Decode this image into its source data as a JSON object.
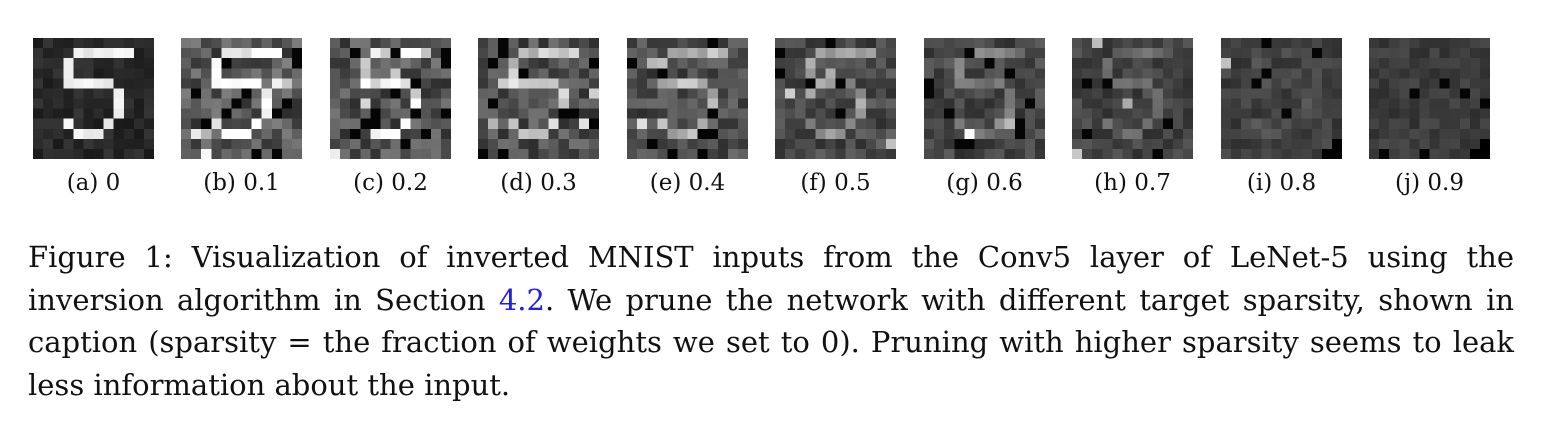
{
  "panels": [
    {
      "letter": "(a)",
      "sparsity": "0"
    },
    {
      "letter": "(b)",
      "sparsity": "0.1"
    },
    {
      "letter": "(c)",
      "sparsity": "0.2"
    },
    {
      "letter": "(d)",
      "sparsity": "0.3"
    },
    {
      "letter": "(e)",
      "sparsity": "0.4"
    },
    {
      "letter": "(f)",
      "sparsity": "0.5"
    },
    {
      "letter": "(g)",
      "sparsity": "0.6"
    },
    {
      "letter": "(h)",
      "sparsity": "0.7"
    },
    {
      "letter": "(i)",
      "sparsity": "0.8"
    },
    {
      "letter": "(j)",
      "sparsity": "0.9"
    }
  ],
  "caption": {
    "label": "Figure 1:",
    "text_before_ref": "Visualization of inverted MNIST inputs from the Conv5 layer of LeNet-5 using the inversion algorithm in Section",
    "ref": "4.2",
    "text_after_ref": ". We prune the network with different target sparsity, shown in caption (sparsity = the fraction of weights we set to 0). Pruning with higher sparsity seems to leak less information about the input."
  }
}
